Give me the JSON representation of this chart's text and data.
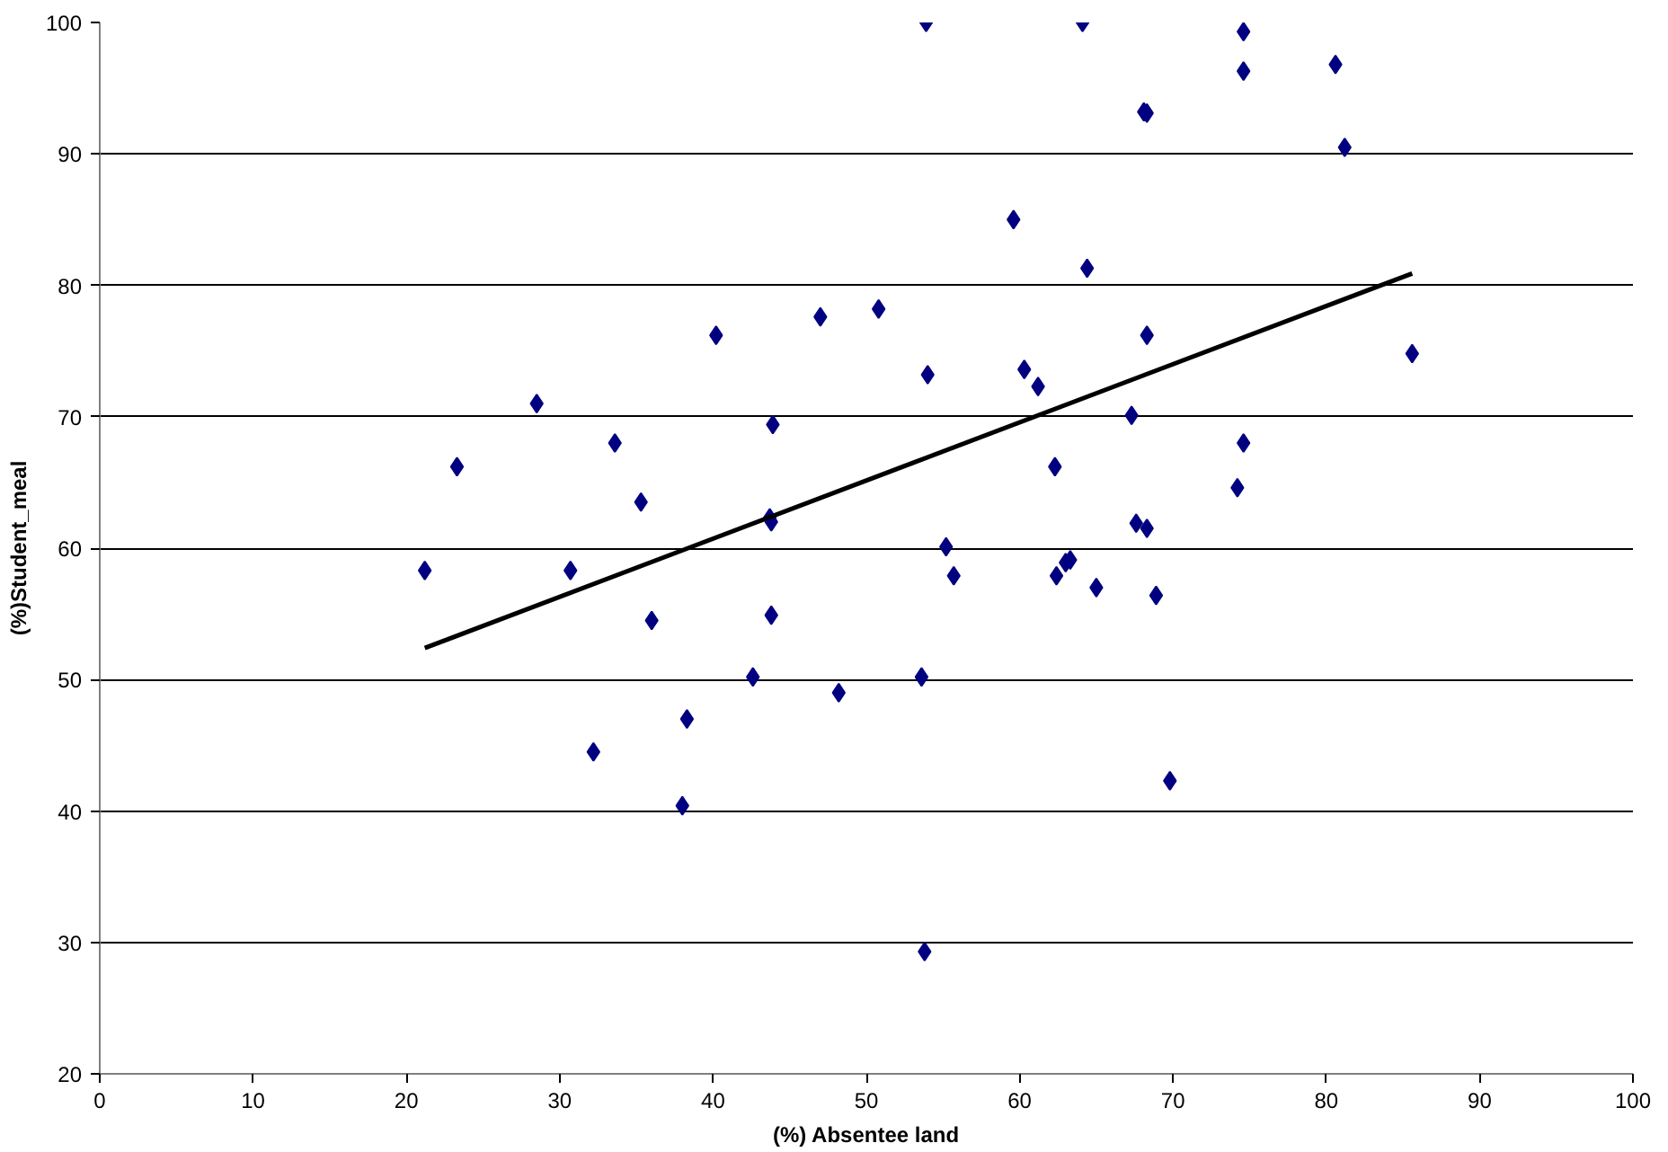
{
  "chart_data": {
    "type": "scatter",
    "xlabel": "(%) Absentee land",
    "ylabel": "(%)Student_meal",
    "xlim": [
      0,
      100
    ],
    "ylim": [
      20,
      100
    ],
    "xticks": [
      0,
      10,
      20,
      30,
      40,
      50,
      60,
      70,
      80,
      90,
      100
    ],
    "yticks": [
      20,
      30,
      40,
      50,
      60,
      70,
      80,
      90,
      100
    ],
    "grid": "y",
    "marker": "diamond",
    "series": [
      {
        "color": "#000080",
        "x": [
          21.2,
          23.3,
          28.5,
          30.7,
          32.2,
          33.6,
          35.3,
          36.0,
          38.3,
          38.0,
          40.2,
          43.9,
          43.7,
          43.8,
          43.8,
          42.6,
          47.0,
          48.2,
          50.8,
          53.9,
          54.0,
          53.6,
          53.8,
          55.2,
          55.7,
          59.6,
          60.3,
          61.2,
          64.1,
          64.4,
          62.3,
          62.4,
          63.0,
          63.3,
          65.0,
          67.3,
          67.6,
          68.1,
          68.3,
          68.3,
          68.3,
          68.9,
          69.8,
          74.6,
          74.6,
          74.2,
          74.6,
          80.6,
          81.2,
          85.6
        ],
        "values": [
          58.3,
          66.2,
          71.0,
          58.3,
          44.5,
          68.0,
          63.5,
          54.5,
          47.0,
          40.4,
          76.2,
          69.4,
          62.3,
          62.0,
          54.9,
          50.2,
          77.6,
          49.0,
          78.2,
          100,
          73.2,
          50.2,
          29.3,
          60.1,
          57.9,
          85.0,
          73.6,
          72.3,
          100,
          81.3,
          66.2,
          57.9,
          58.9,
          59.1,
          57.0,
          70.1,
          61.9,
          93.2,
          93.1,
          76.2,
          61.5,
          56.4,
          42.3,
          99.3,
          96.3,
          64.6,
          68.0,
          96.8,
          90.5,
          74.8
        ]
      },
      {
        "type": "line",
        "color": "#000000",
        "marker": "none",
        "x": [
          21.2,
          85.6
        ],
        "values": [
          52.4,
          80.9
        ]
      }
    ]
  }
}
